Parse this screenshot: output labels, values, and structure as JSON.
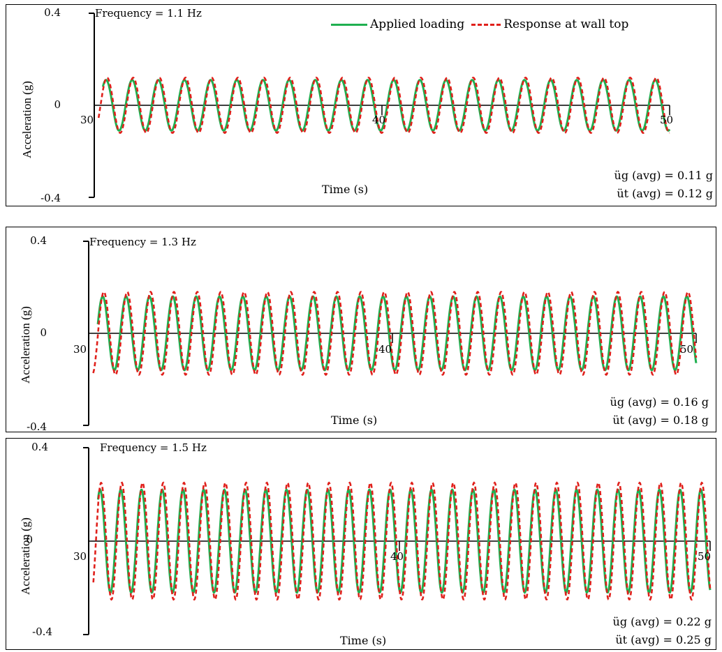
{
  "colors": {
    "applied": "#1fb050",
    "response": "#e0201b",
    "axis": "#000000"
  },
  "legend": {
    "applied_label": "Applied loading",
    "response_label": "Response at wall top"
  },
  "y_axis_label": "Acceleration (g)",
  "x_axis_label": "Time (s)",
  "chart_data": [
    {
      "type": "line",
      "frequency_label": "Frequency = 1.1 Hz",
      "frequency_hz": 1.1,
      "xlabel": "Time (s)",
      "ylabel": "Acceleration (g)",
      "xlim": [
        30,
        50
      ],
      "ylim": [
        -0.4,
        0.4
      ],
      "x_ticks": [
        "30",
        "40",
        "50"
      ],
      "y_ticks": [
        "0.4",
        "0",
        "-0.4"
      ],
      "series": [
        {
          "name": "Applied loading",
          "amplitude": 0.11,
          "style": "solid"
        },
        {
          "name": "Response at wall top",
          "amplitude": 0.12,
          "style": "dashed"
        }
      ],
      "annotations": [
        "üg (avg) = 0.11 g",
        "üt (avg) = 0.12 g"
      ]
    },
    {
      "type": "line",
      "frequency_label": "Frequency = 1.3 Hz",
      "frequency_hz": 1.3,
      "xlabel": "Time (s)",
      "ylabel": "Acceleration (g)",
      "xlim": [
        30,
        50
      ],
      "ylim": [
        -0.4,
        0.4
      ],
      "x_ticks": [
        "30",
        "40",
        "50"
      ],
      "y_ticks": [
        "0.4",
        "0",
        "-0.4"
      ],
      "series": [
        {
          "name": "Applied loading",
          "amplitude": 0.16,
          "style": "solid"
        },
        {
          "name": "Response at wall top",
          "amplitude": 0.18,
          "style": "dashed"
        }
      ],
      "annotations": [
        "üg (avg) = 0.16 g",
        "üt (avg) = 0.18 g"
      ]
    },
    {
      "type": "line",
      "frequency_label": "Frequency = 1.5 Hz",
      "frequency_hz": 1.5,
      "xlabel": "Time (s)",
      "ylabel": "Acceleration (g)",
      "xlim": [
        30,
        50
      ],
      "ylim": [
        -0.4,
        0.4
      ],
      "x_ticks": [
        "30",
        "40",
        "50"
      ],
      "y_ticks": [
        "0.4",
        "0",
        "-0.4"
      ],
      "series": [
        {
          "name": "Applied loading",
          "amplitude": 0.22,
          "style": "solid"
        },
        {
          "name": "Response at wall top",
          "amplitude": 0.25,
          "style": "dashed"
        }
      ],
      "annotations": [
        "üg (avg) = 0.22 g",
        "üt (avg) = 0.25 g"
      ]
    }
  ]
}
